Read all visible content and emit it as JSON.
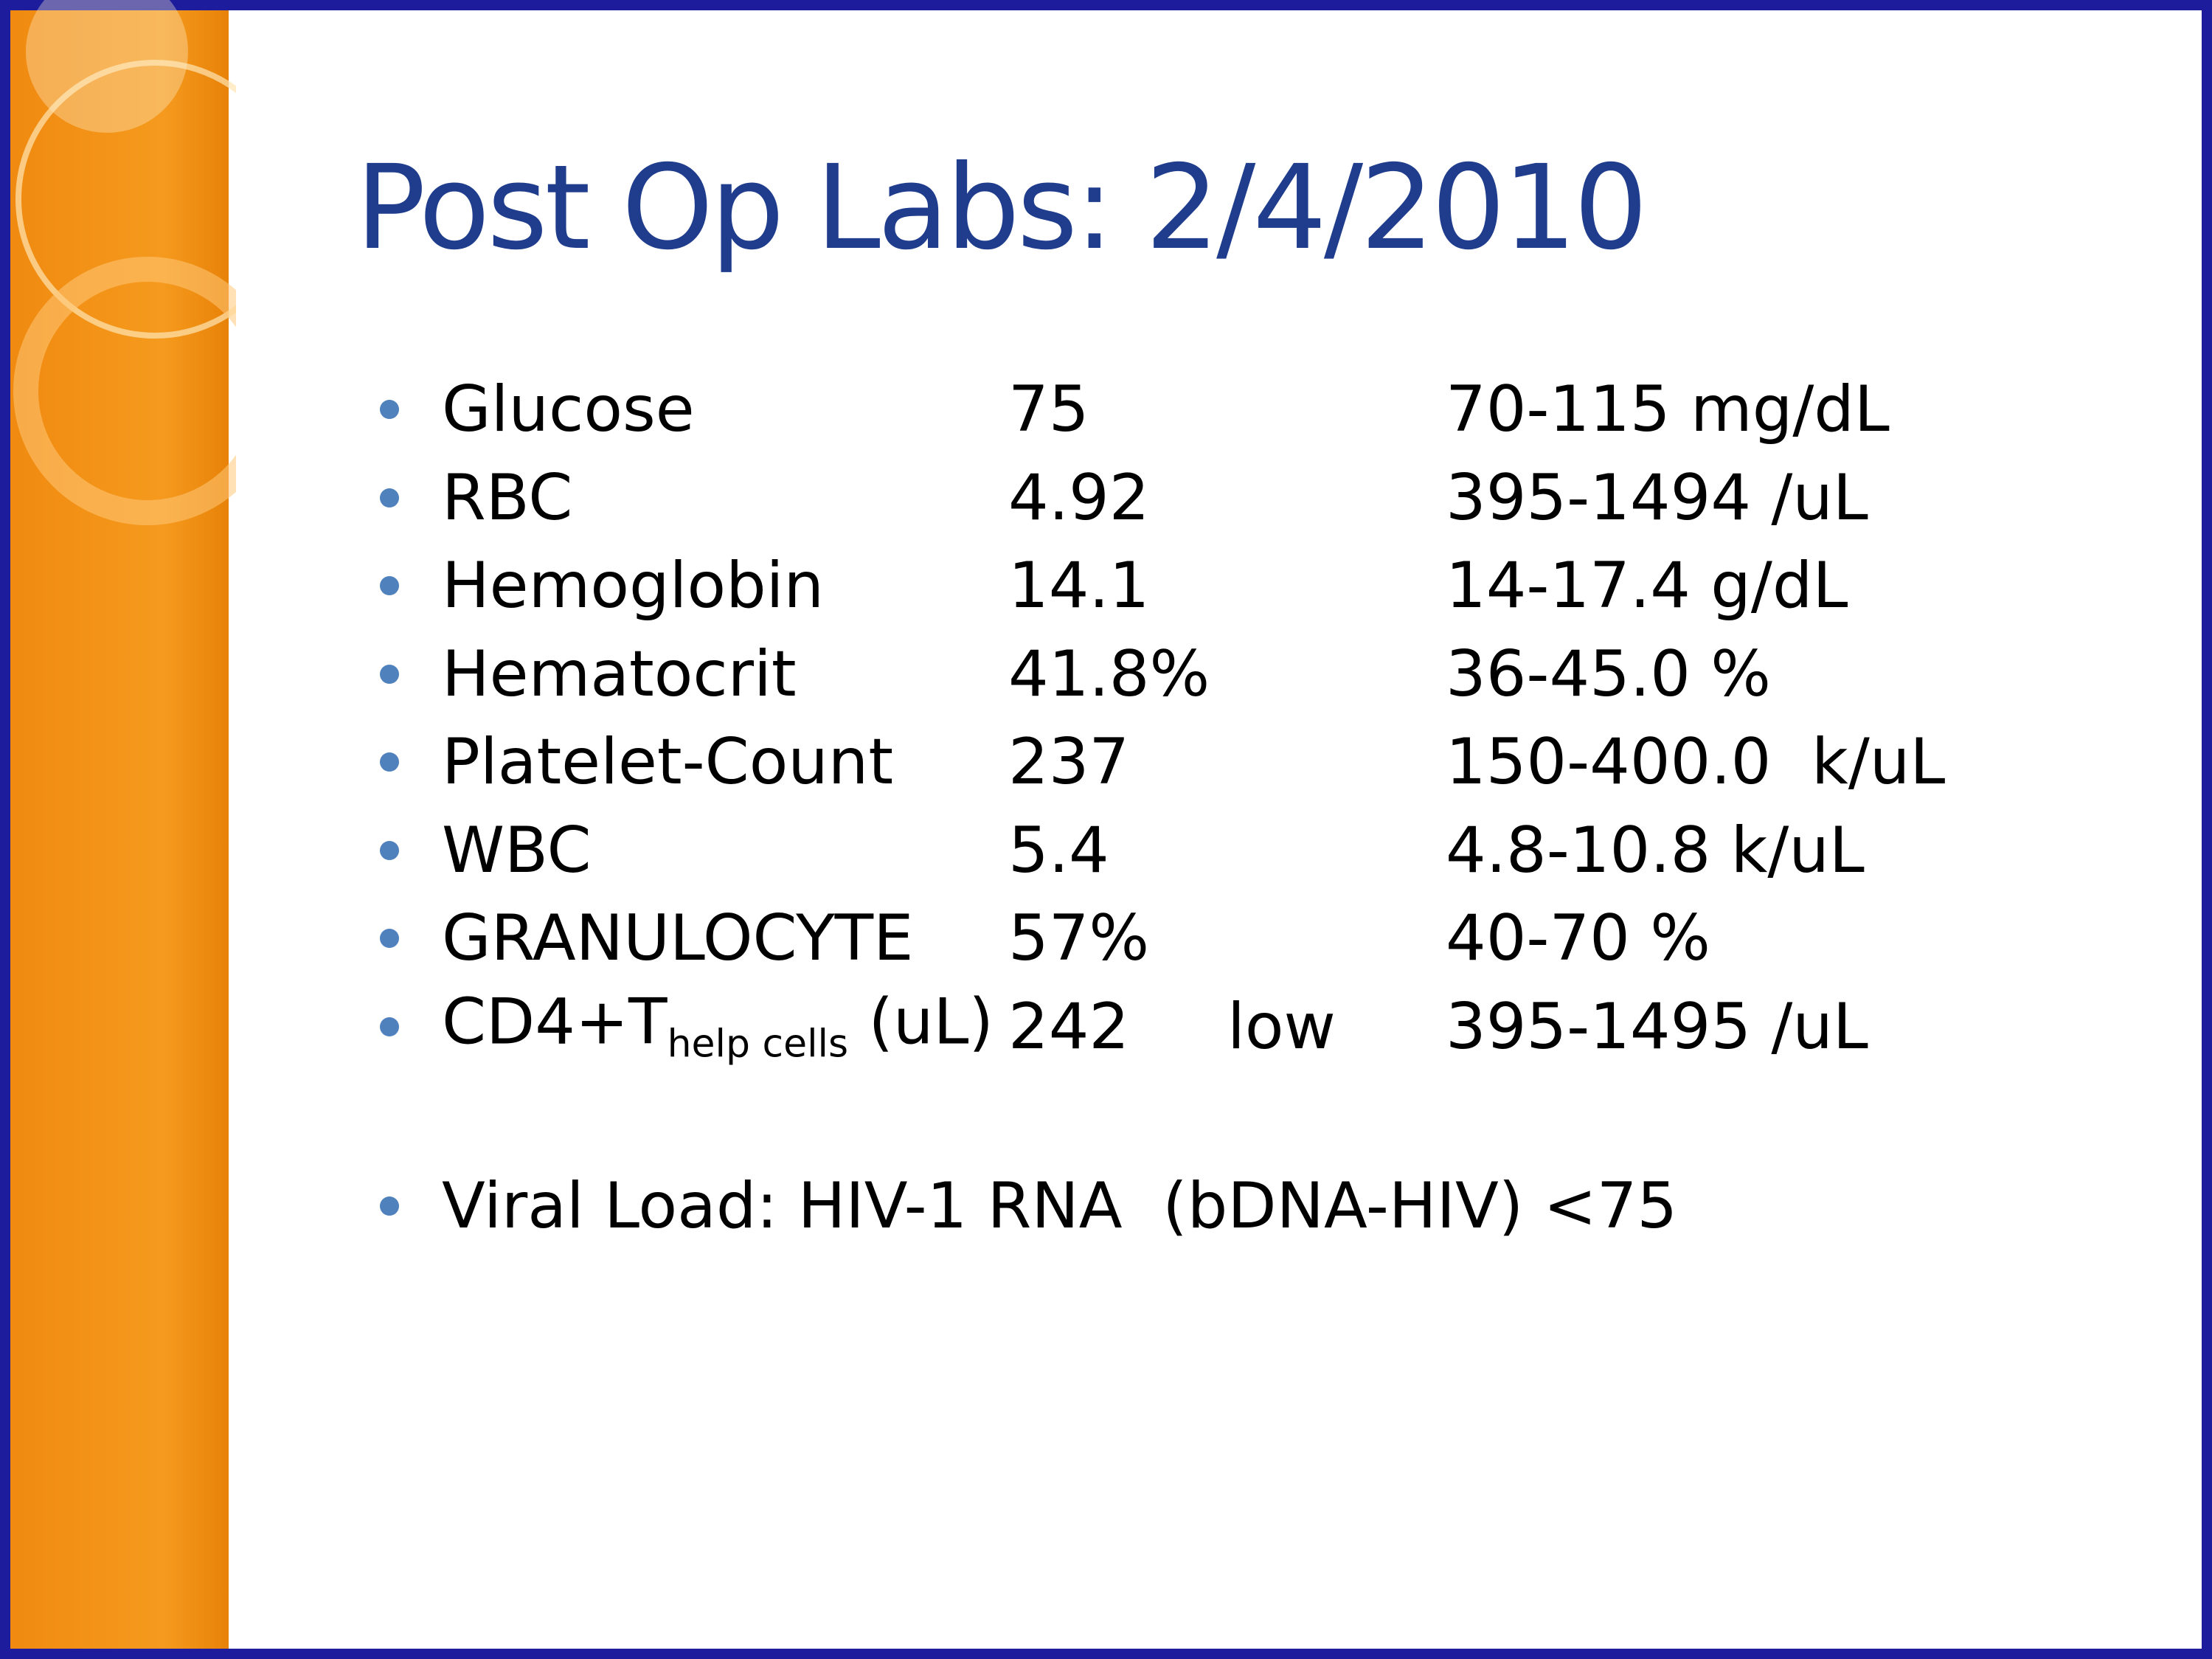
{
  "title": "Post Op Labs: 2/4/2010",
  "labs": [
    {
      "name": "Glucose",
      "value": "75",
      "range": "70-115 mg/dL"
    },
    {
      "name": "RBC",
      "value": "4.92",
      "range": "395-1494 /uL"
    },
    {
      "name": "Hemoglobin",
      "value": "14.1",
      "range": "14-17.4 g/dL"
    },
    {
      "name": "Hematocrit",
      "value": "41.8%",
      "range": "36-45.0 %"
    },
    {
      "name": "Platelet-Count",
      "value": "237",
      "range": "150-400.0  k/uL"
    },
    {
      "name": "WBC",
      "value": "5.4",
      "range": "4.8-10.8 k/uL"
    },
    {
      "name": "GRANULOCYTE",
      "value": "57%",
      "range": "40-70 %"
    },
    {
      "name": "CD4+T",
      "name_subscript": "help cells",
      "name_suffix": "(uL)",
      "value": "242",
      "flag": "low",
      "range": "395-1495 /uL"
    }
  ],
  "note": "Viral Load: HIV-1 RNA  (bDNA-HIV) <75"
}
